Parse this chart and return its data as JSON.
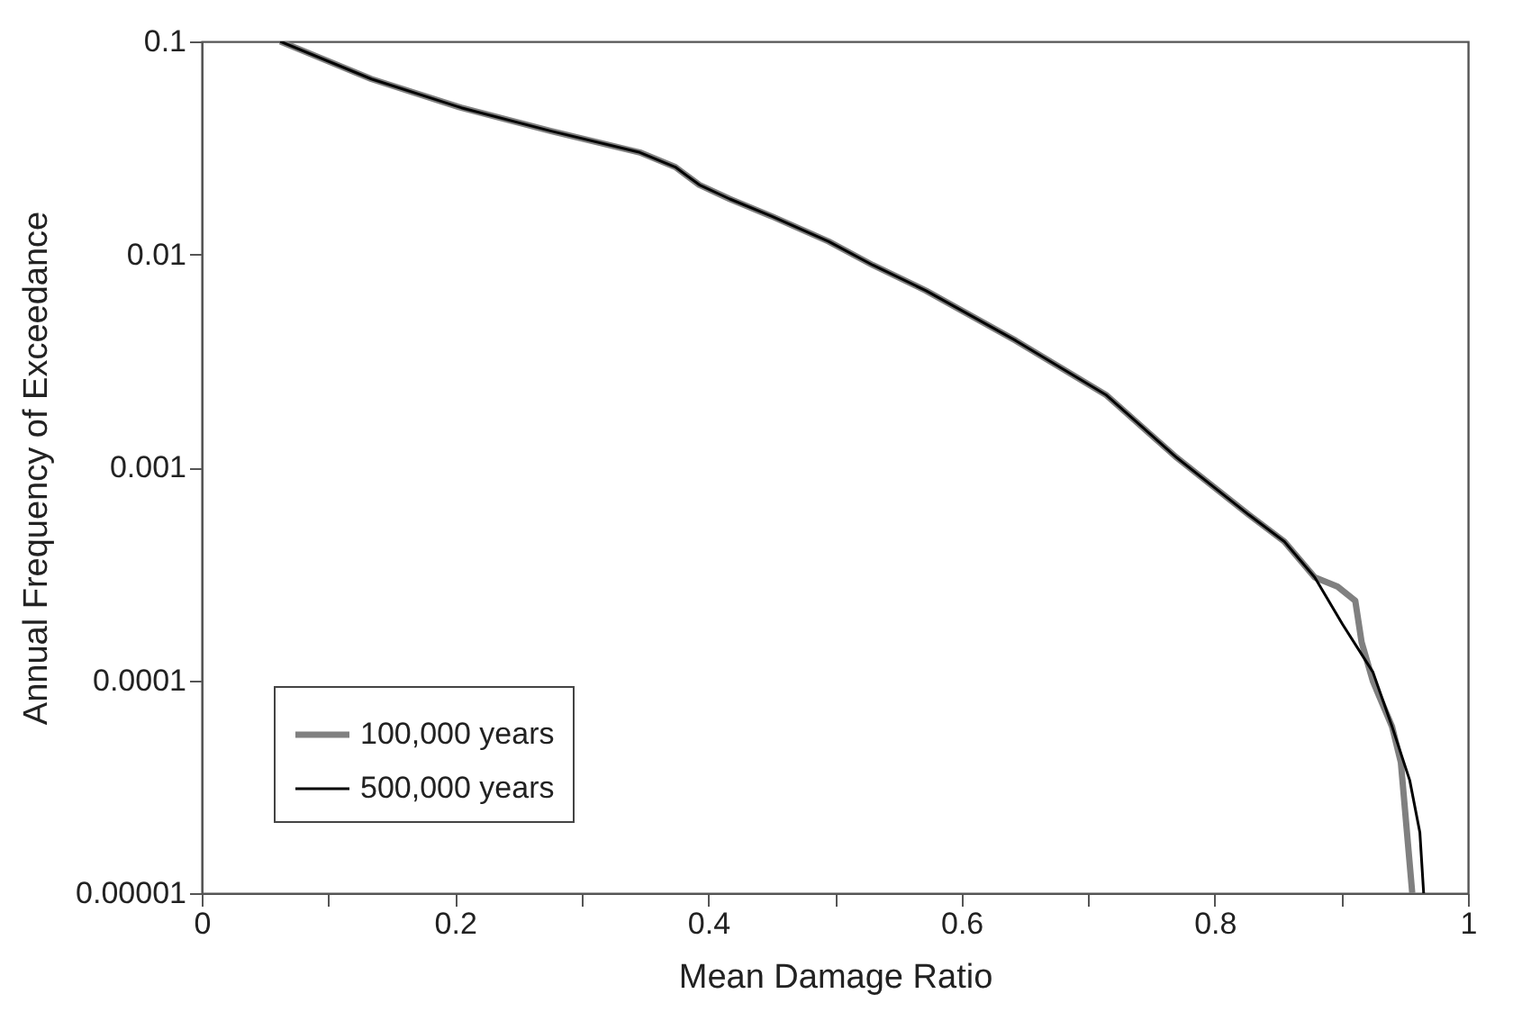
{
  "chart_data": {
    "type": "line",
    "xlabel": "Mean Damage Ratio",
    "ylabel": "Annual Frequency of Exceedance",
    "log": "y",
    "grid": false,
    "legend": "bottom left",
    "line_style": "solid",
    "marker": "none",
    "xlim": [
      0,
      1
    ],
    "xticks": [
      0,
      {
        "value": 0.1,
        "label": null
      },
      0.2,
      {
        "value": 0.3,
        "label": null
      },
      0.4,
      {
        "value": 0.5,
        "label": null
      },
      0.6,
      {
        "value": 0.7,
        "label": null
      },
      0.8,
      {
        "value": 0.9,
        "label": null
      },
      1
    ],
    "ylim": [
      1e-05,
      0.1
    ],
    "yticks": [
      {
        "value": 1e-05,
        "label": "0.00001"
      },
      0.0001,
      0.001,
      0.01,
      0.1
    ],
    "series": [
      {
        "name": "100,000 years",
        "color": "#808080",
        "x": [
          0.062,
          0.134,
          0.205,
          0.276,
          0.346,
          0.374,
          0.393,
          0.417,
          0.45,
          0.495,
          0.53,
          0.572,
          0.643,
          0.714,
          0.77,
          0.827,
          0.855,
          0.879,
          0.897,
          0.911,
          0.916,
          0.925,
          0.94,
          0.947,
          0.956
        ],
        "values": [
          0.1,
          0.0666,
          0.0488,
          0.0379,
          0.0301,
          0.0257,
          0.0212,
          0.0182,
          0.0151,
          0.0115,
          0.0089,
          0.00675,
          0.00393,
          0.00219,
          0.00111,
          0.000598,
          0.000448,
          0.000304,
          0.000275,
          0.000236,
          0.000151,
          9.86e-05,
          6.07e-05,
          4.12e-05,
          1e-05
        ]
      },
      {
        "name": "500,000 years",
        "color": "#000000",
        "x": [
          0.062,
          0.134,
          0.205,
          0.276,
          0.346,
          0.374,
          0.393,
          0.417,
          0.45,
          0.495,
          0.53,
          0.572,
          0.643,
          0.714,
          0.77,
          0.827,
          0.855,
          0.879,
          0.901,
          0.925,
          0.94,
          0.954,
          0.962,
          0.965
        ],
        "values": [
          0.1,
          0.0666,
          0.0488,
          0.0379,
          0.0301,
          0.0257,
          0.0212,
          0.0182,
          0.0151,
          0.0115,
          0.0089,
          0.00675,
          0.00393,
          0.00219,
          0.00111,
          0.000598,
          0.000448,
          0.000304,
          0.000183,
          0.000109,
          6.07e-05,
          3.39e-05,
          1.93e-05,
          1e-05
        ]
      }
    ]
  }
}
